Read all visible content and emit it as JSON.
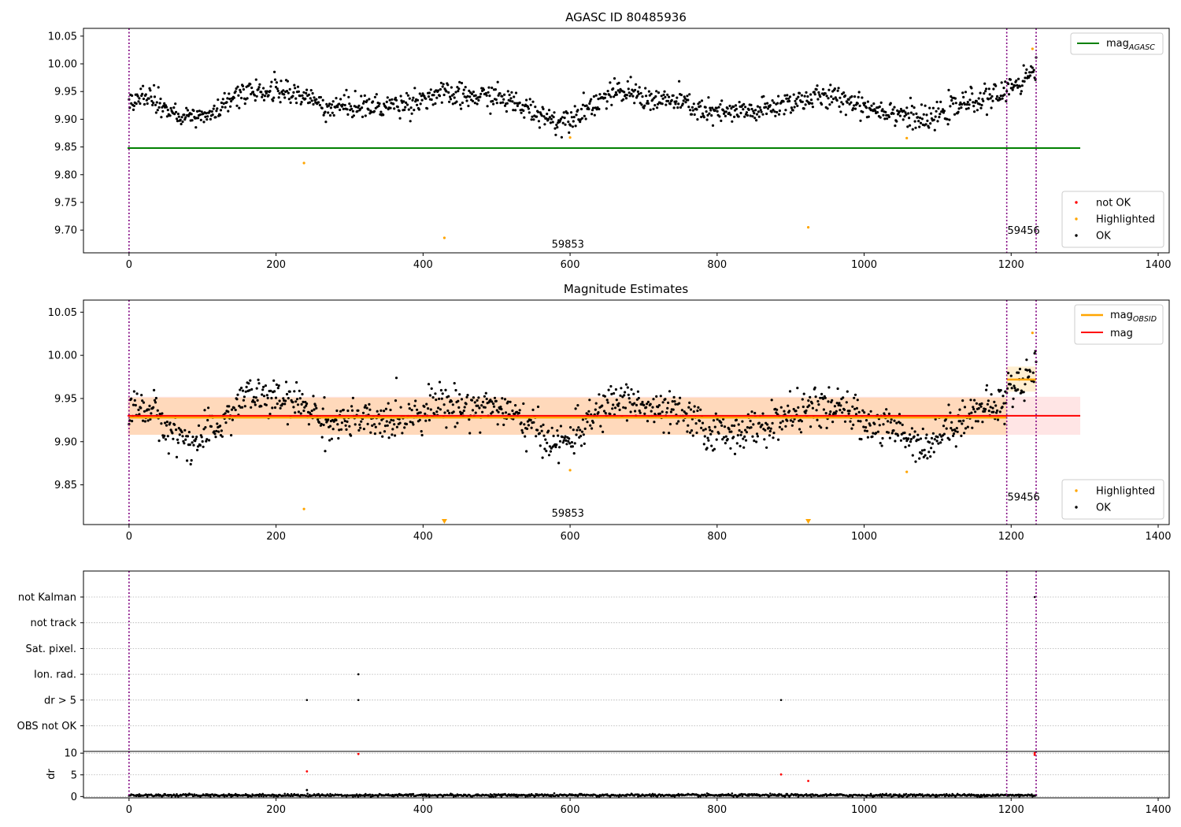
{
  "chart_data": [
    {
      "type": "scatter",
      "title": "AGASC ID 80485936",
      "xlim": [
        -62,
        1415
      ],
      "ylim": [
        9.659,
        10.064
      ],
      "xticks": [
        "0",
        "200",
        "400",
        "600",
        "800",
        "1000",
        "1200",
        "1400"
      ],
      "yticks": [
        "9.70",
        "9.75",
        "9.80",
        "9.85",
        "9.90",
        "9.95",
        "10.00",
        "10.05"
      ],
      "grid": false,
      "obs_boundaries": [
        0,
        1194,
        1234
      ],
      "annotations": [
        {
          "text": "59853",
          "x": 597,
          "y": 9.668
        },
        {
          "text": "59456",
          "x": 1217,
          "y": 9.693
        }
      ],
      "reference_lines": [
        {
          "name": "mag_AGASC",
          "label_main": "mag",
          "label_sub": "AGASC",
          "y": 9.848,
          "x_range": [
            -2,
            1294
          ],
          "color": "#008000"
        }
      ],
      "highlighted_points": [
        [
          238,
          9.821
        ],
        [
          429,
          9.686
        ],
        [
          600,
          9.867
        ],
        [
          924,
          9.705
        ],
        [
          1058,
          9.866
        ],
        [
          1229,
          10.027
        ]
      ],
      "legend": {
        "placement": "lower-right",
        "entries": [
          "not OK",
          "Highlighted",
          "OK"
        ]
      },
      "reference_legend": {
        "placement": "upper-right"
      },
      "ok_profile": [
        [
          0,
          9.94
        ],
        [
          30,
          9.938
        ],
        [
          55,
          9.912
        ],
        [
          90,
          9.898
        ],
        [
          125,
          9.92
        ],
        [
          160,
          9.955
        ],
        [
          200,
          9.948
        ],
        [
          240,
          9.942
        ],
        [
          270,
          9.92
        ],
        [
          300,
          9.925
        ],
        [
          340,
          9.922
        ],
        [
          380,
          9.93
        ],
        [
          420,
          9.945
        ],
        [
          460,
          9.94
        ],
        [
          500,
          9.942
        ],
        [
          530,
          9.925
        ],
        [
          560,
          9.91
        ],
        [
          585,
          9.895
        ],
        [
          615,
          9.915
        ],
        [
          650,
          9.942
        ],
        [
          680,
          9.95
        ],
        [
          710,
          9.935
        ],
        [
          750,
          9.932
        ],
        [
          790,
          9.91
        ],
        [
          820,
          9.912
        ],
        [
          860,
          9.915
        ],
        [
          900,
          9.932
        ],
        [
          940,
          9.94
        ],
        [
          980,
          9.935
        ],
        [
          1010,
          9.92
        ],
        [
          1050,
          9.912
        ],
        [
          1085,
          9.895
        ],
        [
          1110,
          9.915
        ],
        [
          1150,
          9.935
        ],
        [
          1193,
          9.945
        ],
        [
          1195,
          9.96
        ],
        [
          1215,
          9.97
        ],
        [
          1234,
          9.99
        ]
      ],
      "series": [
        {
          "name": "not OK",
          "color": "#ff0000"
        },
        {
          "name": "Highlighted",
          "color": "#ffa500"
        },
        {
          "name": "OK",
          "color": "#000000"
        }
      ]
    },
    {
      "type": "scatter",
      "title": "Magnitude Estimates",
      "xlim": [
        -62,
        1415
      ],
      "ylim": [
        9.804,
        10.064
      ],
      "xticks": [
        "0",
        "200",
        "400",
        "600",
        "800",
        "1000",
        "1200",
        "1400"
      ],
      "yticks": [
        "9.85",
        "9.90",
        "9.95",
        "10.00",
        "10.05"
      ],
      "grid": false,
      "obs_boundaries": [
        0,
        1194,
        1234
      ],
      "annotations": [
        {
          "text": "59853",
          "x": 597,
          "y": 9.813
        },
        {
          "text": "59456",
          "x": 1217,
          "y": 9.832
        }
      ],
      "reference_lines": [
        {
          "name": "mag",
          "label_main": "mag",
          "label_sub": "",
          "y": 9.93,
          "x_range": [
            -2,
            1294
          ],
          "color": "#ff0000",
          "band": [
            9.908,
            9.952
          ],
          "band_color": "#ff9999"
        },
        {
          "name": "mag_OBSID",
          "label_main": "mag",
          "label_sub": "OBSID",
          "color": "#ffa500",
          "segments": [
            {
              "x_range": [
                0,
                1194
              ],
              "y": 9.928,
              "band": [
                9.908,
                9.951
              ]
            },
            {
              "x_range": [
                1194,
                1234
              ],
              "y": 9.972,
              "band": [
                9.958,
                9.987
              ]
            }
          ]
        }
      ],
      "highlighted_points": [
        [
          238,
          9.822
        ],
        [
          600,
          9.867
        ],
        [
          1058,
          9.865
        ],
        [
          1229,
          10.026
        ]
      ],
      "clipped_markers": [
        429,
        924
      ],
      "legend": {
        "placement": "lower-right",
        "entries": [
          "Highlighted",
          "OK"
        ]
      },
      "reference_legend": {
        "placement": "upper-right"
      },
      "ok_profile": [
        [
          0,
          9.94
        ],
        [
          30,
          9.938
        ],
        [
          55,
          9.912
        ],
        [
          90,
          9.898
        ],
        [
          125,
          9.92
        ],
        [
          160,
          9.955
        ],
        [
          200,
          9.948
        ],
        [
          240,
          9.942
        ],
        [
          270,
          9.92
        ],
        [
          300,
          9.925
        ],
        [
          340,
          9.922
        ],
        [
          380,
          9.93
        ],
        [
          420,
          9.945
        ],
        [
          460,
          9.94
        ],
        [
          500,
          9.942
        ],
        [
          530,
          9.925
        ],
        [
          560,
          9.91
        ],
        [
          585,
          9.895
        ],
        [
          615,
          9.915
        ],
        [
          650,
          9.942
        ],
        [
          680,
          9.95
        ],
        [
          710,
          9.935
        ],
        [
          750,
          9.932
        ],
        [
          790,
          9.91
        ],
        [
          820,
          9.912
        ],
        [
          860,
          9.915
        ],
        [
          900,
          9.932
        ],
        [
          940,
          9.94
        ],
        [
          980,
          9.935
        ],
        [
          1010,
          9.92
        ],
        [
          1050,
          9.912
        ],
        [
          1085,
          9.895
        ],
        [
          1110,
          9.915
        ],
        [
          1150,
          9.935
        ],
        [
          1193,
          9.945
        ],
        [
          1195,
          9.96
        ],
        [
          1215,
          9.97
        ],
        [
          1234,
          9.99
        ]
      ],
      "series": [
        {
          "name": "Highlighted",
          "color": "#ffa500"
        },
        {
          "name": "OK",
          "color": "#000000"
        }
      ]
    },
    {
      "type": "scatter",
      "xlim": [
        -62,
        1415
      ],
      "categories": [
        "OBS not OK",
        "dr > 5",
        "Ion. rad.",
        "Sat. pixel.",
        "not track",
        "not Kalman"
      ],
      "grid": true,
      "obs_boundaries": [
        0,
        1194,
        1234
      ],
      "flag_points": [
        {
          "category": "dr > 5",
          "x": [
            242,
            312,
            887
          ]
        },
        {
          "category": "Ion. rad.",
          "x": [
            312
          ]
        },
        {
          "category": "not Kalman",
          "x": [
            1232
          ]
        }
      ],
      "series": [
        {
          "name": "flags",
          "color": "#000000"
        }
      ]
    },
    {
      "type": "scatter",
      "ylabel": "dr",
      "xlim": [
        -62,
        1415
      ],
      "ylim": [
        -0.3,
        10.4
      ],
      "xticks": [
        "0",
        "200",
        "400",
        "600",
        "800",
        "1000",
        "1200",
        "1400"
      ],
      "yticks": [
        "0",
        "5",
        "10"
      ],
      "grid": true,
      "obs_boundaries": [
        0,
        1194,
        1234
      ],
      "baseline": {
        "x_range": [
          0,
          1234
        ],
        "mean": 0.3,
        "spread": 0.3,
        "color": "#000000"
      },
      "high_points": [
        {
          "x": 242,
          "y": 5.8,
          "color": "#ff0000"
        },
        {
          "x": 242,
          "y": 1.5,
          "color": "#000000"
        },
        {
          "x": 312,
          "y": 9.8,
          "color": "#ff0000"
        },
        {
          "x": 887,
          "y": 5.1,
          "color": "#ff0000"
        },
        {
          "x": 924,
          "y": 3.6,
          "color": "#ff0000"
        },
        {
          "x": 1232,
          "y": 9.6,
          "color": "#ff0000"
        },
        {
          "x": 1232,
          "y": 10.0,
          "color": "#ff0000"
        }
      ]
    }
  ],
  "colors": {
    "ok": "#000000",
    "not_ok": "#ff0000",
    "highlighted": "#ffa500",
    "agasc_line": "#008000",
    "mag_line": "#ff0000",
    "obsid_line": "#ffa500",
    "boundary": "#800080"
  }
}
